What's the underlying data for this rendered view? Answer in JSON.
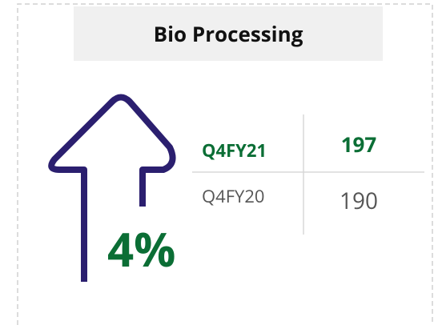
{
  "title": "Bio Processing",
  "change": "4%",
  "table": {
    "rows": [
      [
        "Q4FY21",
        197
      ],
      [
        "Q4FY20",
        190
      ]
    ]
  }
}
